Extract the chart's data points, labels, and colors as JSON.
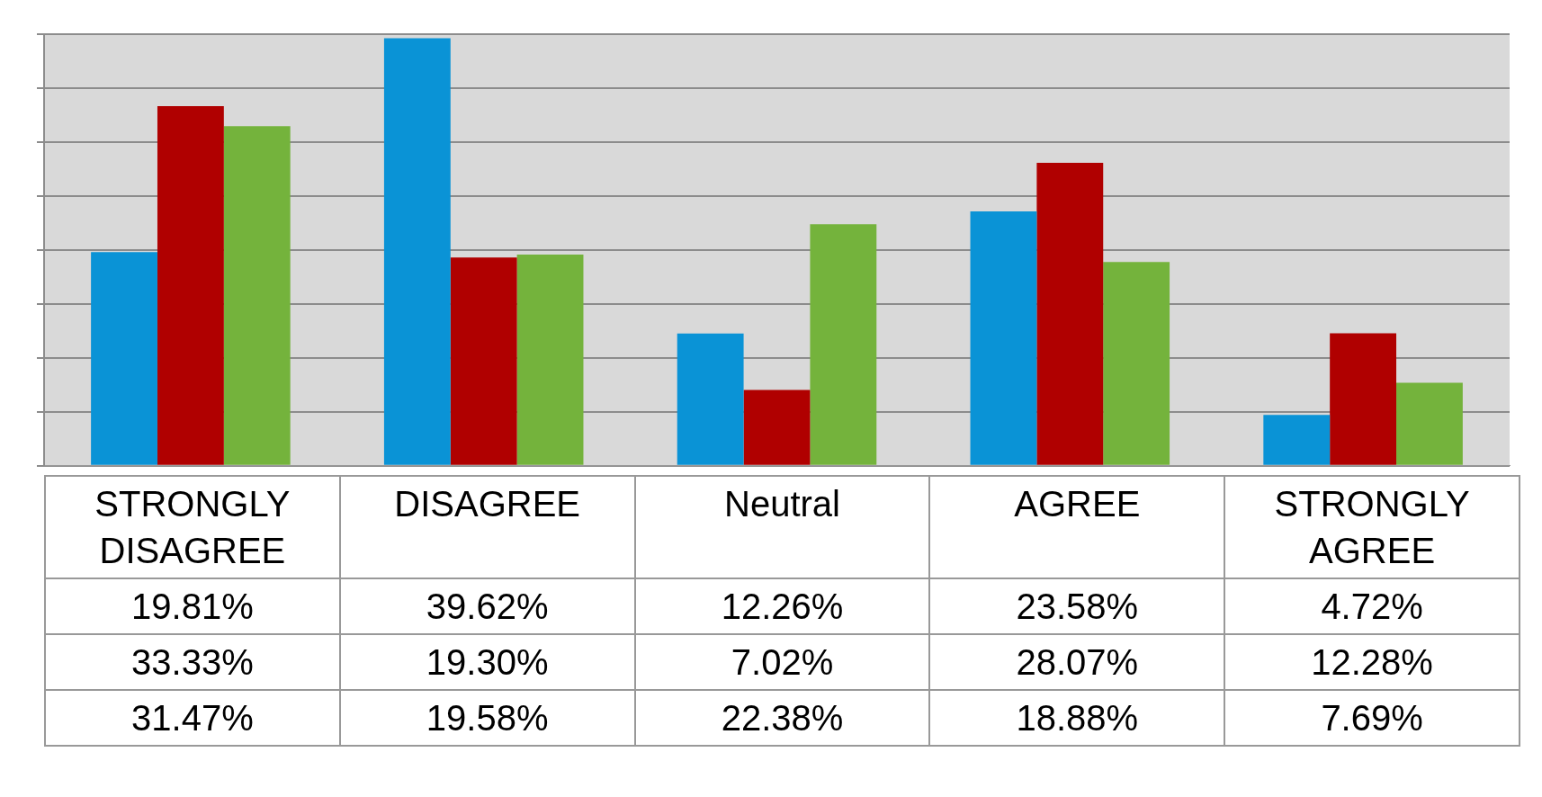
{
  "chart_data": {
    "type": "bar",
    "categories": [
      "STRONGLY DISAGREE",
      "DISAGREE",
      "Neutral",
      "AGREE",
      "STRONGLY AGREE"
    ],
    "series": [
      {
        "color": "#0a93d6",
        "values": [
          19.81,
          39.62,
          12.26,
          23.58,
          4.72
        ],
        "value_labels": [
          "19.81%",
          "39.62%",
          "12.26%",
          "23.58%",
          "4.72%"
        ]
      },
      {
        "color": "#b00000",
        "values": [
          33.33,
          19.3,
          7.02,
          28.07,
          12.28
        ],
        "value_labels": [
          "33.33%",
          "19.30%",
          "7.02%",
          "28.07%",
          "12.28%"
        ]
      },
      {
        "color": "#74b33c",
        "values": [
          31.47,
          19.58,
          22.38,
          18.88,
          7.69
        ],
        "value_labels": [
          "31.47%",
          "19.58%",
          "22.38%",
          "18.88%",
          "7.69%"
        ]
      }
    ],
    "ylim": [
      0,
      40
    ],
    "yticks": [
      {
        "value": 0,
        "label": null
      },
      {
        "value": 5,
        "label": null
      },
      {
        "value": 10,
        "label": null
      },
      {
        "value": 15,
        "label": null
      },
      {
        "value": 20,
        "label": null
      },
      {
        "value": 25,
        "label": null
      },
      {
        "value": 30,
        "label": null
      },
      {
        "value": 35,
        "label": null
      },
      {
        "value": 40,
        "label": null
      }
    ],
    "grid": "y",
    "legend": false
  }
}
